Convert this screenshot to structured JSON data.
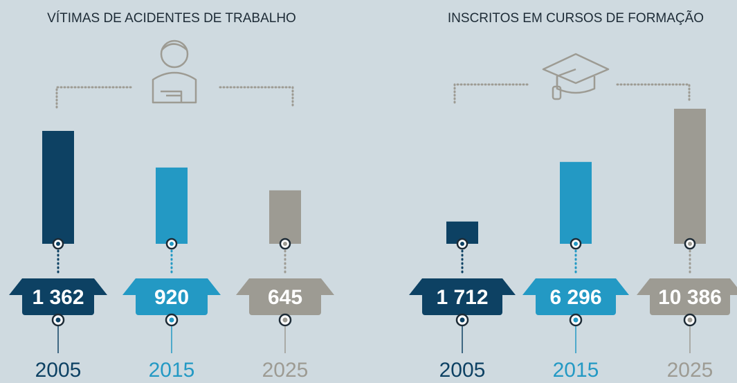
{
  "chart_data": [
    {
      "type": "bar",
      "title": "VÍTIMAS DE ACIDENTES DE TRABALHO",
      "categories": [
        "2005",
        "2015",
        "2025"
      ],
      "values": [
        1362,
        920,
        645
      ],
      "value_labels": [
        "1 362",
        "920",
        "645"
      ],
      "colors": [
        "#0d4163",
        "#2399c4",
        "#9d9b93"
      ]
    },
    {
      "type": "bar",
      "title": "INSCRITOS EM CURSOS DE FORMAÇÃO",
      "categories": [
        "2005",
        "2015",
        "2025"
      ],
      "values": [
        1712,
        6296,
        10386
      ],
      "value_labels": [
        "1 712",
        "6 296",
        "10 386"
      ],
      "colors": [
        "#0d4163",
        "#2399c4",
        "#9d9b93"
      ]
    }
  ]
}
